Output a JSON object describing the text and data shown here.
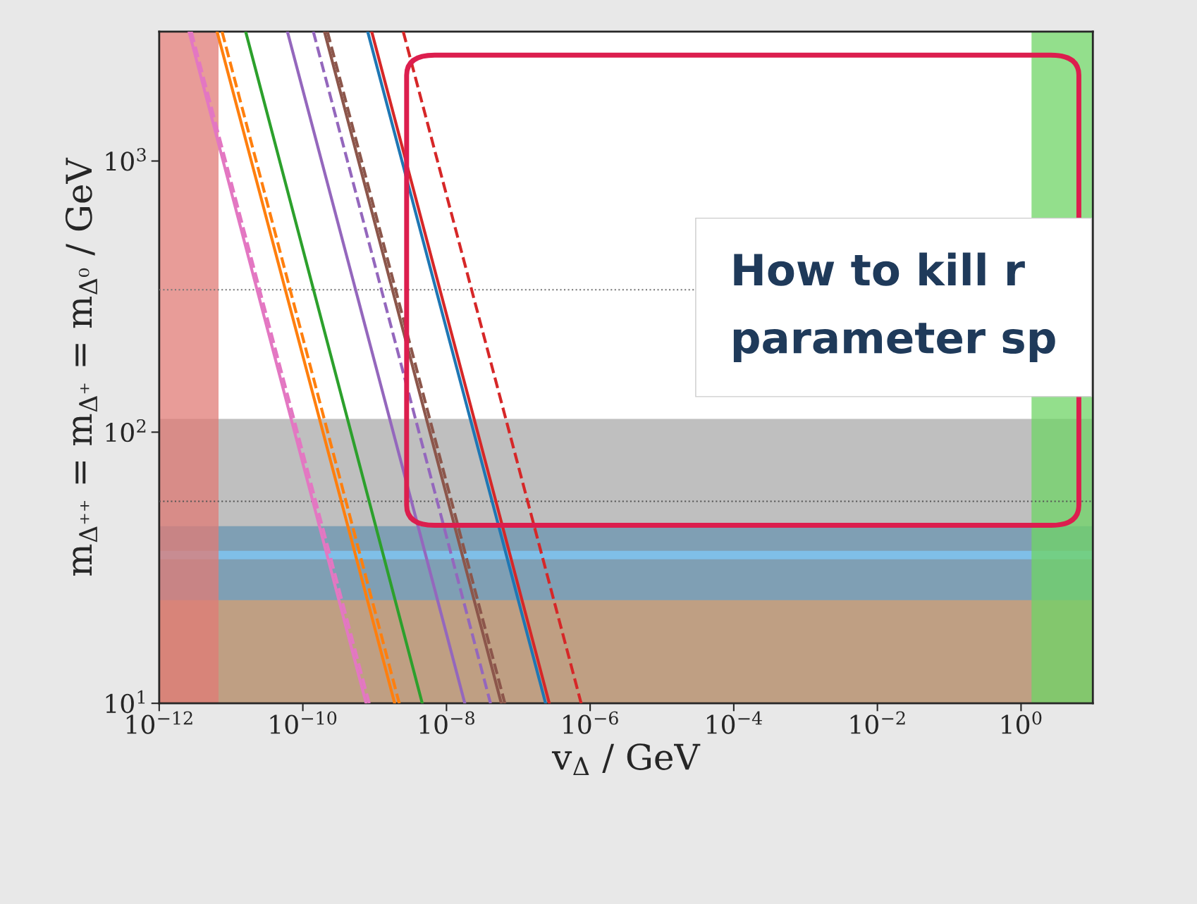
{
  "chart_data": {
    "type": "line",
    "xlabel": "v$_{Δ}$ / GeV",
    "ylabel": "m$_{Δ⁺⁺}$ = m$_{Δ⁺}$ = m$_{Δ⁰}$ / GeV",
    "log": "xy",
    "grid": false,
    "legend": false,
    "marker": "none",
    "xlim": [
      1e-12,
      10
    ],
    "ylim": [
      10,
      3000
    ],
    "xticks": [
      {
        "value": 1e-12,
        "label": "10$^{−12}$"
      },
      {
        "value": 1e-10,
        "label": "10$^{−10}$"
      },
      {
        "value": 1e-08,
        "label": "10$^{−8}$"
      },
      {
        "value": 1e-06,
        "label": "10$^{−6}$"
      },
      {
        "value": 0.0001,
        "label": "10$^{−4}$"
      },
      {
        "value": 0.01,
        "label": "10$^{−2}$"
      },
      {
        "value": 1,
        "label": "10$^{0}$"
      }
    ],
    "yticks": [
      {
        "value": 10,
        "label": "10$^{1}$"
      },
      {
        "value": 100,
        "label": "10$^{2}$"
      },
      {
        "value": 1000,
        "label": "10$^{3}$"
      }
    ],
    "series": [
      {
        "color": "#e377c2",
        "line_style": "solid",
        "x": [
          2.6e-12,
          7.6e-10
        ],
        "values": [
          3000,
          10
        ]
      },
      {
        "color": "#e377c2",
        "line_style": "dashed",
        "x": [
          2.8e-12,
          8.4e-10
        ],
        "values": [
          3000,
          10
        ]
      },
      {
        "color": "#ff7f0e",
        "line_style": "solid",
        "x": [
          6.4e-12,
          1.9e-09
        ],
        "values": [
          3000,
          10
        ]
      },
      {
        "color": "#ff7f0e",
        "line_style": "dashed",
        "x": [
          7.5e-12,
          2.2e-09
        ],
        "values": [
          3000,
          10
        ]
      },
      {
        "color": "#2ca02c",
        "line_style": "solid",
        "x": [
          1.6e-11,
          4.6e-09
        ],
        "values": [
          3000,
          10
        ]
      },
      {
        "color": "#9467bd",
        "line_style": "solid",
        "x": [
          6.1e-11,
          1.8e-08
        ],
        "values": [
          3000,
          10
        ]
      },
      {
        "color": "#9467bd",
        "line_style": "dashed",
        "x": [
          1.4e-10,
          4.1e-08
        ],
        "values": [
          3000,
          10
        ]
      },
      {
        "color": "#8c564b",
        "line_style": "solid",
        "x": [
          2e-10,
          5.8e-08
        ],
        "values": [
          3000,
          10
        ]
      },
      {
        "color": "#8c564b",
        "line_style": "dashed",
        "x": [
          2.2e-10,
          6.5e-08
        ],
        "values": [
          3000,
          10
        ]
      },
      {
        "color": "#1f77b4",
        "line_style": "solid",
        "x": [
          8e-10,
          2.4e-07
        ],
        "values": [
          3000,
          10
        ]
      },
      {
        "color": "#d62728",
        "line_style": "solid",
        "x": [
          9.1e-10,
          2.7e-07
        ],
        "values": [
          3000,
          10
        ]
      },
      {
        "color": "#d62728",
        "line_style": "dashed",
        "x": [
          2.5e-09,
          7.5e-07
        ],
        "values": [
          3000,
          10
        ]
      }
    ],
    "bands": [
      {
        "axis": "y",
        "from": 10,
        "to": 112,
        "color": "#bfbfbf"
      },
      {
        "axis": "y",
        "from": 10,
        "to": 45,
        "color": "#7f9fb4"
      },
      {
        "axis": "y",
        "from": 10,
        "to": 24,
        "color": "#bf9f83"
      },
      {
        "axis": "y",
        "from": 34,
        "to": 36.5,
        "color": "#7fbfe8"
      },
      {
        "axis": "x",
        "from": 1e-12,
        "to": 6.7e-12,
        "color": "#e07b76"
      },
      {
        "axis": "x",
        "from": 1.4,
        "to": 10,
        "color": "#6fd466"
      }
    ],
    "ref_lines": [
      {
        "axis": "y",
        "value": 335,
        "color": "#777777",
        "line_style": "dotted"
      },
      {
        "axis": "y",
        "value": 55.6,
        "color": "#555555",
        "line_style": "dotted"
      }
    ],
    "annotations": [
      "How to kill r\nparameter sp"
    ]
  }
}
